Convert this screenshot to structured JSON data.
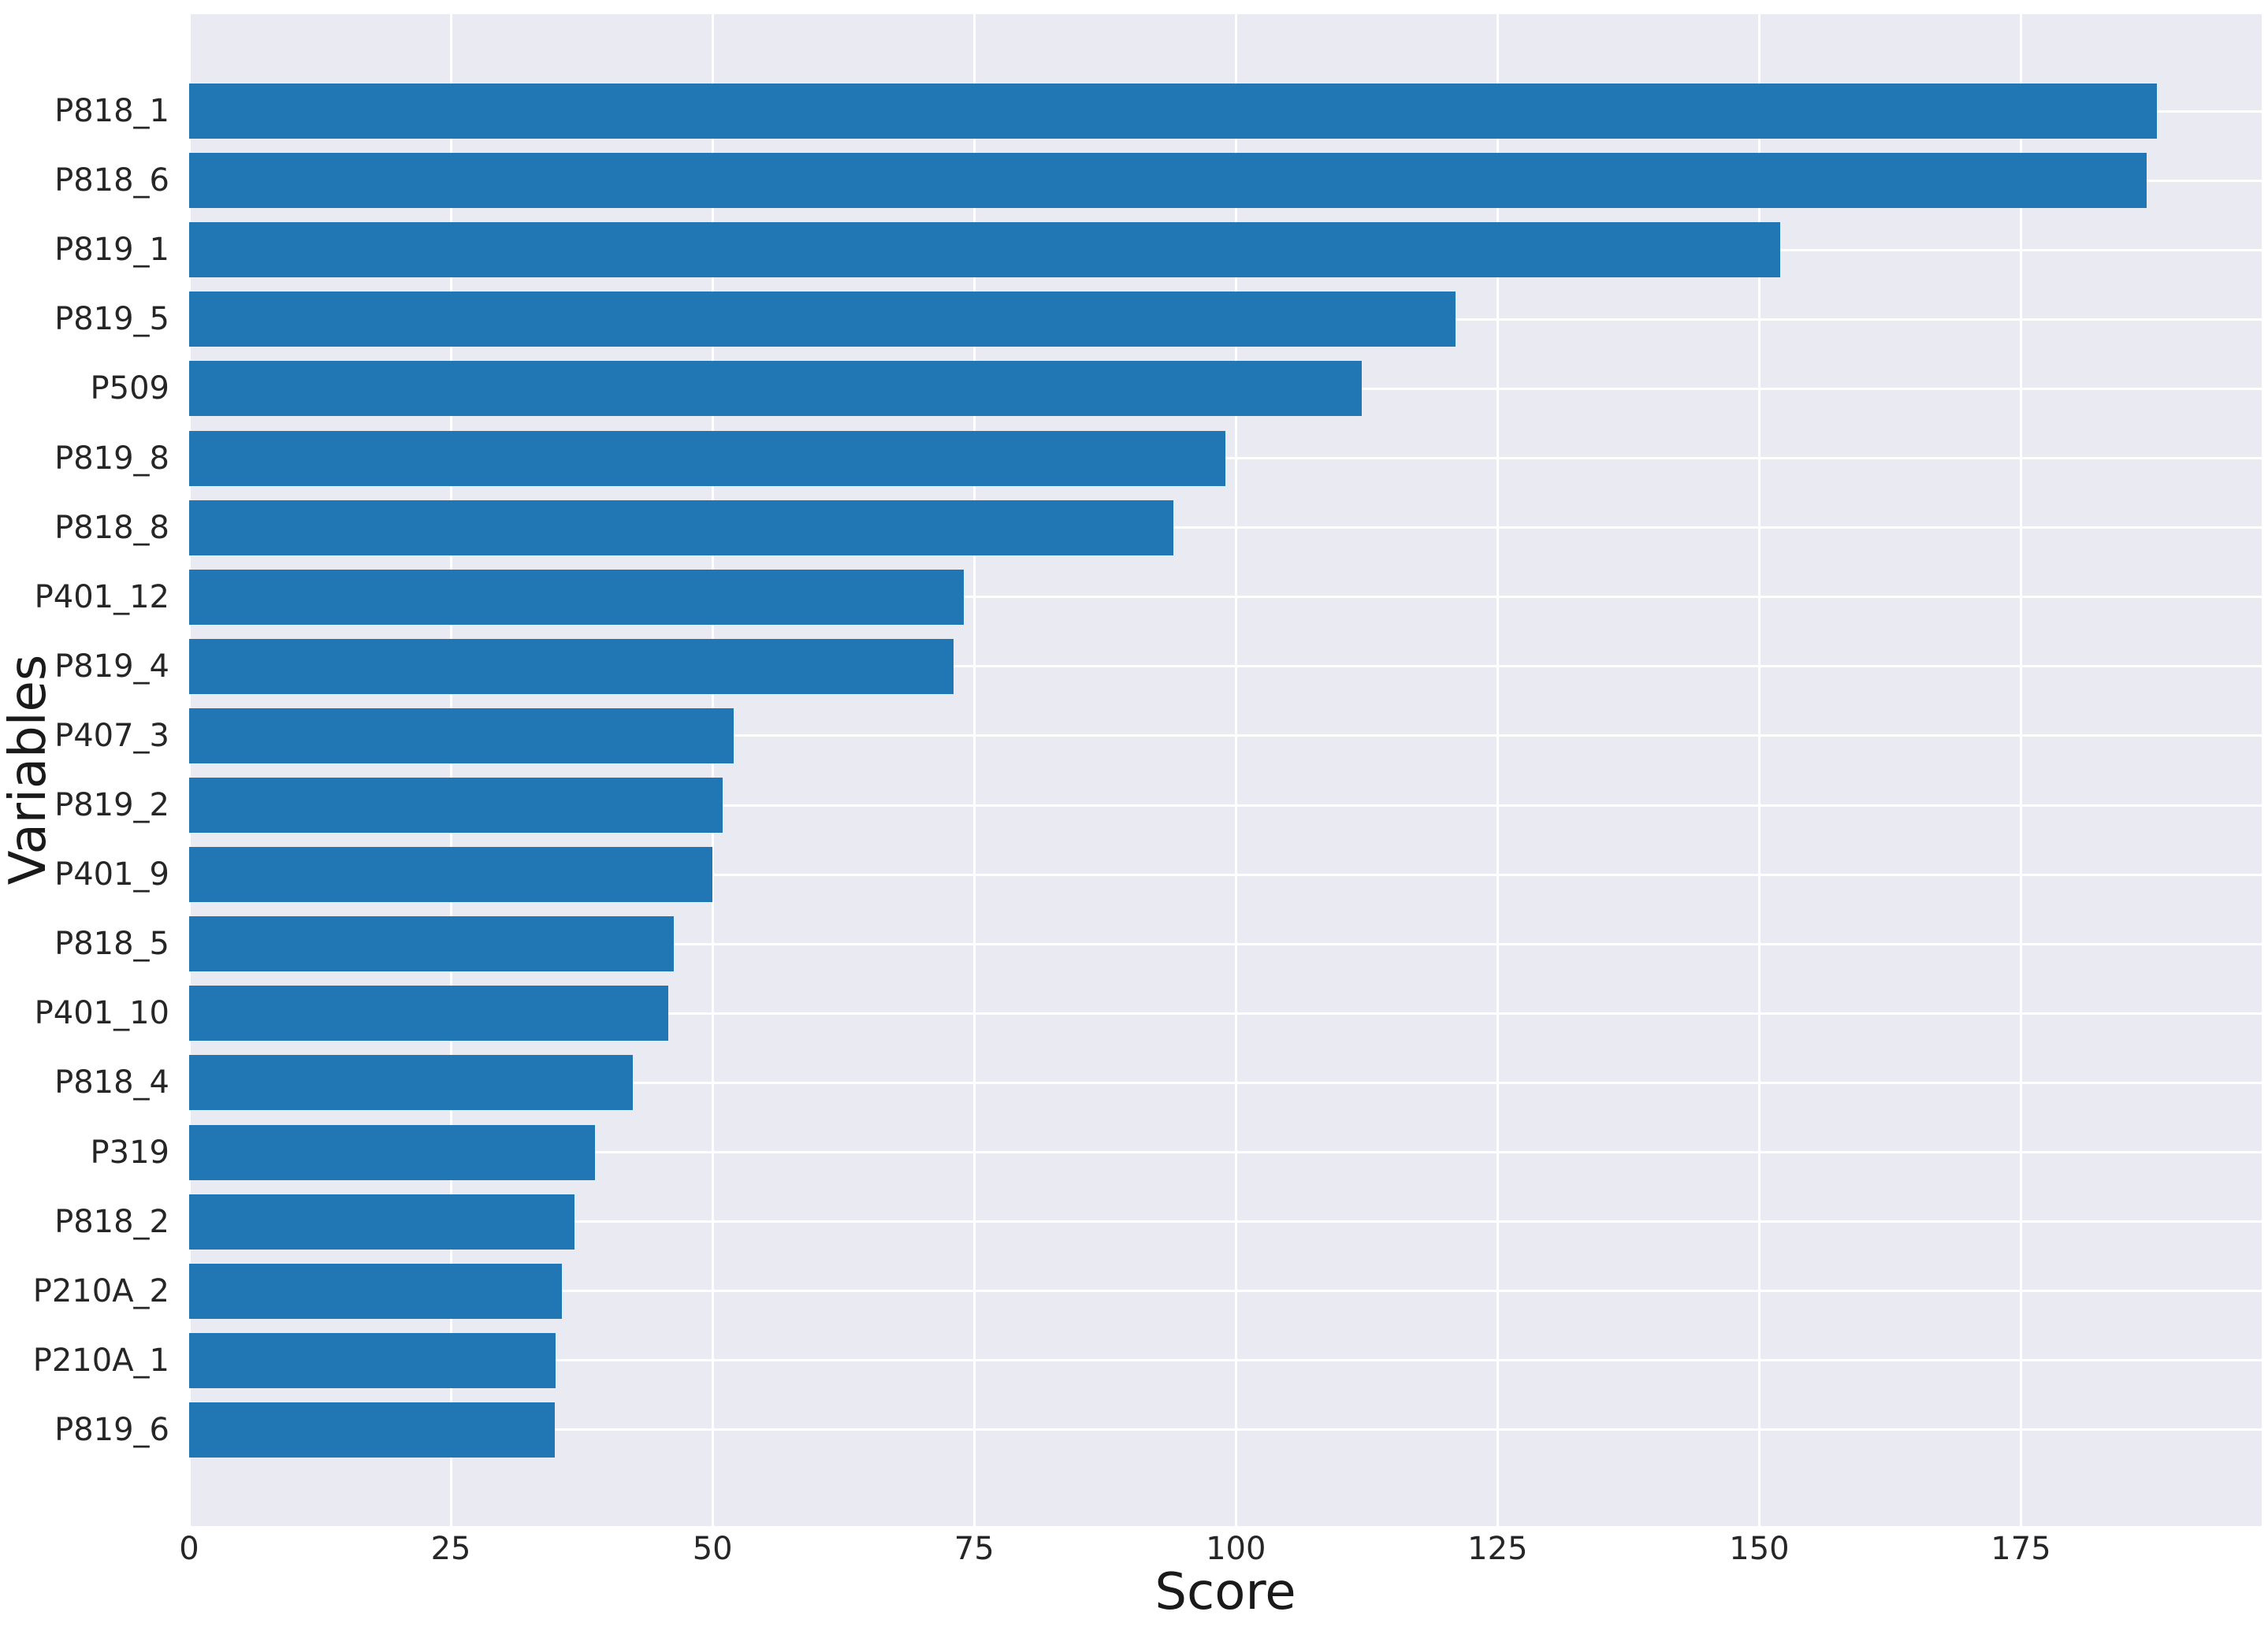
{
  "chart_data": {
    "type": "bar",
    "orientation": "horizontal",
    "title": "",
    "xlabel": "Score",
    "ylabel": "Variables",
    "categories": [
      "P818_1",
      "P818_6",
      "P819_1",
      "P819_5",
      "P509",
      "P819_8",
      "P818_8",
      "P401_12",
      "P819_4",
      "P407_3",
      "P819_2",
      "P401_9",
      "P818_5",
      "P401_10",
      "P818_4",
      "P319",
      "P818_2",
      "P210A_2",
      "P210A_1",
      "P819_6"
    ],
    "values": [
      188,
      187,
      152,
      121,
      112,
      99,
      94,
      74,
      73,
      52,
      51,
      50,
      46.3,
      45.8,
      42.4,
      38.8,
      36.8,
      35.6,
      35,
      34.9
    ],
    "xticks": [
      0,
      25,
      50,
      75,
      100,
      125,
      150,
      175
    ],
    "xlim": [
      0,
      198
    ],
    "grid": "both",
    "legend": null,
    "colors": {
      "bar": "#2077b4",
      "plot_background": "#eaeaf2",
      "gridline": "#ffffff",
      "tick_text": "#262626",
      "label_text": "#1a1a1a",
      "figure_background": "#ffffff"
    }
  }
}
